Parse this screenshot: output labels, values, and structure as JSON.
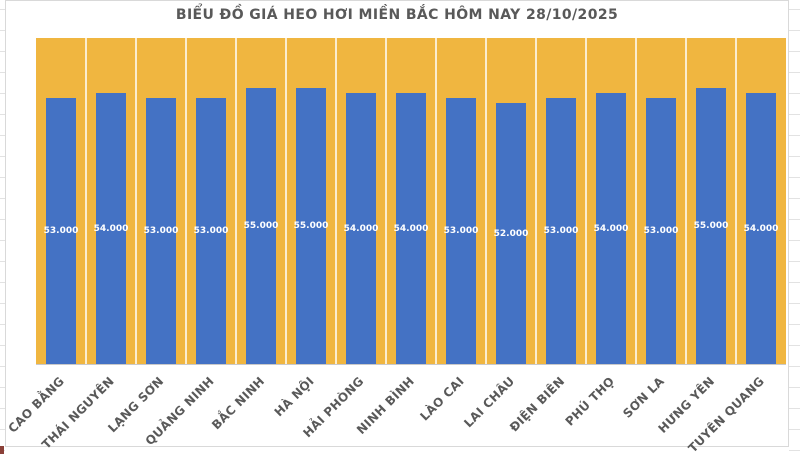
{
  "sheet": {
    "gridline_color": "#E2E2E2",
    "cell_marker_color": "#8A4038"
  },
  "chart": {
    "title_color": "#595959",
    "plot_bg": "#F0B640",
    "bar_color": "#4472C4",
    "separator_color": "rgba(255,255,255,0.75)",
    "value_label_color": "#FFFFFF",
    "category_label_color": "#595959",
    "axis_line_color": "#C9C9C9"
  },
  "chart_data": {
    "type": "bar",
    "title": "BIỂU ĐỒ GIÁ HEO HƠI MIỀN BẮC HÔM NAY 28/10/2025",
    "categories": [
      "CAO BẰNG",
      "THÁI NGUYÊN",
      "LẠNG SƠN",
      "QUẢNG NINH",
      "BẮC NINH",
      "HÀ NỘI",
      "HẢI PHÒNG",
      "NINH BÌNH",
      "LÀO CAI",
      "LAI CHÂU",
      "ĐIỆN BIÊN",
      "PHÚ THỌ",
      "SƠN LA",
      "HƯNG YÊN",
      "TUYÊN QUANG"
    ],
    "values": [
      53000,
      54000,
      53000,
      53000,
      55000,
      55000,
      54000,
      54000,
      53000,
      52000,
      53000,
      54000,
      53000,
      55000,
      54000
    ],
    "value_labels": [
      "53.000",
      "54.000",
      "53.000",
      "53.000",
      "55.000",
      "55.000",
      "54.000",
      "54.000",
      "53.000",
      "52.000",
      "53.000",
      "54.000",
      "53.000",
      "55.000",
      "54.000"
    ],
    "ylim": [
      0,
      65000
    ],
    "xlabel": "",
    "ylabel": "",
    "grid": false,
    "legend": "none"
  }
}
